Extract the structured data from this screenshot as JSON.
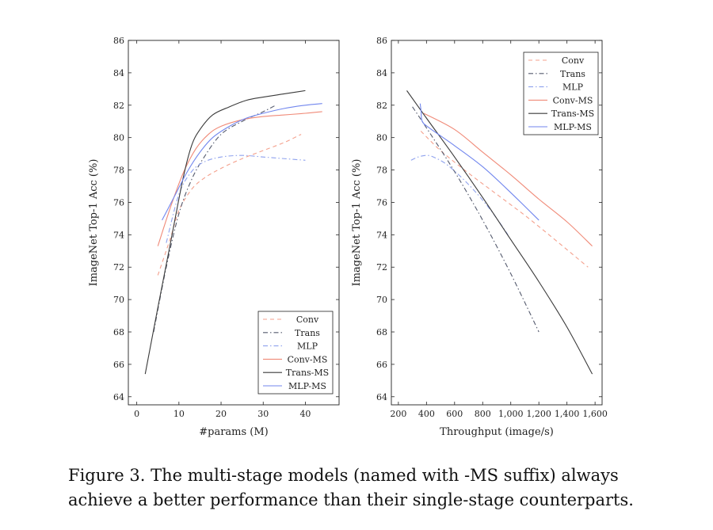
{
  "figure": {
    "caption_line1": "Figure 3. The multi-stage models (named with -MS suffix) always",
    "caption_line2": "achieve a better performance than their single-stage counterparts."
  },
  "styles": {
    "Conv": {
      "color": "#f4a08c",
      "dash": "dashed"
    },
    "Trans": {
      "color": "#555b6e",
      "dash": "dashdot"
    },
    "MLP": {
      "color": "#8fa2ee",
      "dash": "dashdot"
    },
    "Conv-MS": {
      "color": "#f08a78",
      "dash": "solid"
    },
    "Trans-MS": {
      "color": "#3a3a3a",
      "dash": "solid"
    },
    "MLP-MS": {
      "color": "#7186ee",
      "dash": "solid"
    }
  },
  "chart_data": [
    {
      "type": "line",
      "xlabel": "#params (M)",
      "ylabel": "ImageNet Top-1 Acc (%)",
      "xlim": [
        -2,
        48
      ],
      "ylim": [
        63.5,
        86
      ],
      "xticks": [
        0,
        10,
        20,
        30,
        40
      ],
      "xtick_labels": [
        "0",
        "10",
        "20",
        "30",
        "40"
      ],
      "yticks": [
        64,
        66,
        68,
        70,
        72,
        74,
        76,
        78,
        80,
        82,
        84,
        86
      ],
      "ytick_labels": [
        "64",
        "66",
        "68",
        "70",
        "72",
        "74",
        "76",
        "78",
        "80",
        "82",
        "84",
        "86"
      ],
      "legend_position": "bottom-right",
      "series": [
        {
          "name": "Conv",
          "x": [
            5,
            8,
            10,
            13,
            16,
            20,
            25,
            30,
            35,
            39
          ],
          "y": [
            71.5,
            73.8,
            75.5,
            76.8,
            77.5,
            78.1,
            78.7,
            79.2,
            79.7,
            80.2
          ]
        },
        {
          "name": "Trans",
          "x": [
            4,
            7,
            10,
            13,
            16,
            20,
            25,
            30,
            33
          ],
          "y": [
            68,
            72,
            75.3,
            77.4,
            78.8,
            80.2,
            81,
            81.6,
            82
          ]
        },
        {
          "name": "MLP",
          "x": [
            7,
            10,
            13,
            16,
            20,
            25,
            30,
            35,
            40
          ],
          "y": [
            73.5,
            76.5,
            77.9,
            78.5,
            78.8,
            78.9,
            78.8,
            78.7,
            78.6
          ]
        },
        {
          "name": "Conv-MS",
          "x": [
            5,
            8,
            11,
            14,
            17,
            20,
            25,
            30,
            35,
            40,
            44
          ],
          "y": [
            73.3,
            75.7,
            77.8,
            79.3,
            80.2,
            80.7,
            81.1,
            81.3,
            81.4,
            81.5,
            81.6
          ]
        },
        {
          "name": "Trans-MS",
          "x": [
            2,
            5,
            8,
            11,
            13,
            15,
            18,
            22,
            26,
            30,
            35,
            40
          ],
          "y": [
            65.4,
            69.5,
            73.5,
            77.5,
            79.5,
            80.5,
            81.4,
            81.9,
            82.3,
            82.5,
            82.7,
            82.9
          ]
        },
        {
          "name": "MLP-MS",
          "x": [
            6,
            9,
            12,
            15,
            18,
            22,
            26,
            30,
            35,
            40,
            44
          ],
          "y": [
            74.9,
            76.4,
            77.9,
            79.1,
            80,
            80.7,
            81.2,
            81.5,
            81.8,
            82,
            82.1
          ]
        }
      ]
    },
    {
      "type": "line",
      "xlabel": "Throughput (image/s)",
      "ylabel": "ImageNet Top-1 Acc (%)",
      "xlim": [
        150,
        1650
      ],
      "ylim": [
        63.5,
        86
      ],
      "xticks": [
        200,
        400,
        600,
        800,
        1000,
        1200,
        1400,
        1600
      ],
      "xtick_labels": [
        "200",
        "400",
        "600",
        "800",
        "1,000",
        "1,200",
        "1,400",
        "1,600"
      ],
      "yticks": [
        64,
        66,
        68,
        70,
        72,
        74,
        76,
        78,
        80,
        82,
        84,
        86
      ],
      "ytick_labels": [
        "64",
        "66",
        "68",
        "70",
        "72",
        "74",
        "76",
        "78",
        "80",
        "82",
        "84",
        "86"
      ],
      "legend_position": "top-right",
      "series": [
        {
          "name": "Conv",
          "x": [
            360,
            500,
            700,
            900,
            1100,
            1300,
            1550
          ],
          "y": [
            80.4,
            79.2,
            77.8,
            76.5,
            75.2,
            73.8,
            72
          ]
        },
        {
          "name": "Trans",
          "x": [
            300,
            400,
            600,
            800,
            1000,
            1200
          ],
          "y": [
            81.9,
            80.6,
            77.9,
            74.9,
            71.6,
            68
          ]
        },
        {
          "name": "MLP",
          "x": [
            290,
            340,
            400,
            450,
            550,
            700,
            850,
            980
          ],
          "y": [
            78.6,
            78.8,
            78.9,
            78.8,
            78.3,
            77.1,
            75.6,
            74
          ]
        },
        {
          "name": "Conv-MS",
          "x": [
            380,
            600,
            800,
            1000,
            1200,
            1400,
            1580
          ],
          "y": [
            81.5,
            80.5,
            79.1,
            77.7,
            76.2,
            74.8,
            73.3
          ]
        },
        {
          "name": "Trans-MS",
          "x": [
            260,
            400,
            600,
            800,
            1000,
            1200,
            1400,
            1580
          ],
          "y": [
            82.9,
            81.2,
            78.8,
            76.3,
            73.7,
            71.1,
            68.3,
            65.4
          ]
        },
        {
          "name": "MLP-MS",
          "x": [
            355,
            362,
            370,
            420,
            600,
            800,
            1000,
            1200
          ],
          "y": [
            82.1,
            81.6,
            81,
            80.6,
            79.5,
            78.2,
            76.6,
            74.9
          ]
        }
      ]
    }
  ]
}
